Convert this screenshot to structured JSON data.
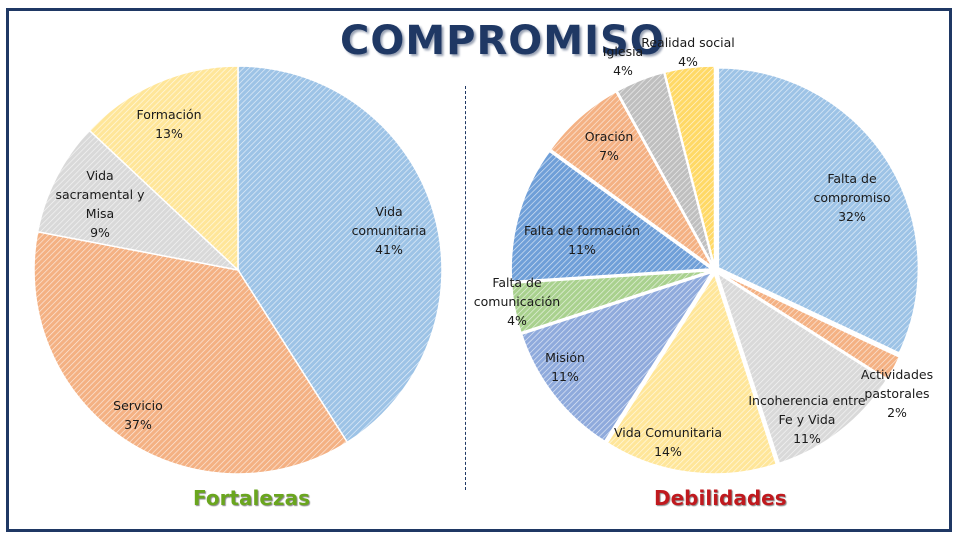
{
  "title": "COMPROMISO",
  "fortalezas_label": "Fortalezas",
  "debilidades_label": "Debilidades",
  "chart_data": [
    {
      "type": "pie",
      "slices": [
        {
          "label": [
            "Vida",
            "comunitaria"
          ],
          "pct": "41%",
          "value": 41,
          "color": "#9dc3e6"
        },
        {
          "label": [
            "Servicio"
          ],
          "pct": "37%",
          "value": 37,
          "color": "#f4b183"
        },
        {
          "label": [
            "Vida",
            "sacramental y",
            "Misa"
          ],
          "pct": "9%",
          "value": 9,
          "color": "#d9d9d9"
        },
        {
          "label": [
            "Formación"
          ],
          "pct": "13%",
          "value": 13,
          "color": "#ffe699"
        }
      ]
    },
    {
      "type": "pie",
      "slices": [
        {
          "label": [
            "Falta de",
            "compromiso"
          ],
          "pct": "32%",
          "value": 32,
          "color": "#9dc3e6"
        },
        {
          "label": [
            "Actividades",
            "pastorales"
          ],
          "pct": "2%",
          "value": 2,
          "color": "#f4b183"
        },
        {
          "label": [
            "Incoherencia entre",
            "Fe y Vida"
          ],
          "pct": "11%",
          "value": 11,
          "color": "#d9d9d9"
        },
        {
          "label": [
            "Vida Comunitaria"
          ],
          "pct": "14%",
          "value": 14,
          "color": "#ffe699"
        },
        {
          "label": [
            "Misión"
          ],
          "pct": "11%",
          "value": 11,
          "color": "#8faadc"
        },
        {
          "label": [
            "Falta de",
            "comunicación"
          ],
          "pct": "4%",
          "value": 4,
          "color": "#a9d18e"
        },
        {
          "label": [
            "Falta de formación"
          ],
          "pct": "11%",
          "value": 11,
          "color": "#6f9fd8"
        },
        {
          "label": [
            "Oración"
          ],
          "pct": "7%",
          "value": 7,
          "color": "#f4b183"
        },
        {
          "label": [
            "Iglesia"
          ],
          "pct": "4%",
          "value": 4,
          "color": "#bfbfbf"
        },
        {
          "label": [
            "Realidad social"
          ],
          "pct": "4%",
          "value": 4,
          "color": "#ffd966"
        }
      ]
    }
  ]
}
